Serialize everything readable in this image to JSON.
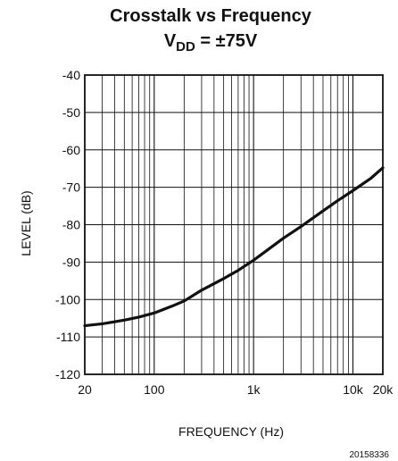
{
  "chart_data": {
    "type": "line",
    "title": "Crosstalk vs Frequency",
    "subtitle": {
      "prefix": "V",
      "subscript": "DD",
      "suffix": " = ±75V"
    },
    "xlabel": "FREQUENCY (Hz)",
    "ylabel": "LEVEL (dB)",
    "xscale": "log",
    "xlim": [
      20,
      20000
    ],
    "ylim": [
      -120,
      -40
    ],
    "grid": true,
    "x_ticks": [
      {
        "value": 20,
        "label": "20"
      },
      {
        "value": 100,
        "label": "100"
      },
      {
        "value": 1000,
        "label": "1k"
      },
      {
        "value": 10000,
        "label": "10k"
      },
      {
        "value": 20000,
        "label": "20k"
      }
    ],
    "y_ticks": [
      {
        "value": -40,
        "label": "-40"
      },
      {
        "value": -50,
        "label": "-50"
      },
      {
        "value": -60,
        "label": "-60"
      },
      {
        "value": -70,
        "label": "-70"
      },
      {
        "value": -80,
        "label": "-80"
      },
      {
        "value": -90,
        "label": "-90"
      },
      {
        "value": -100,
        "label": "-100"
      },
      {
        "value": -110,
        "label": "-110"
      },
      {
        "value": -120,
        "label": "-120"
      }
    ],
    "series": [
      {
        "x": [
          20,
          30,
          50,
          70,
          100,
          150,
          200,
          300,
          500,
          700,
          1000,
          2000,
          3000,
          5000,
          7000,
          10000,
          15000,
          20000
        ],
        "y": [
          -107,
          -106.5,
          -105.5,
          -104.7,
          -103.6,
          -101.8,
          -100.4,
          -97.5,
          -94.4,
          -92.2,
          -89.5,
          -83.6,
          -80.5,
          -76.3,
          -73.6,
          -70.9,
          -67.7,
          -64.8
        ]
      }
    ],
    "line_color": "#111111",
    "grid_color": "#111111"
  },
  "figure_id": "20158336"
}
